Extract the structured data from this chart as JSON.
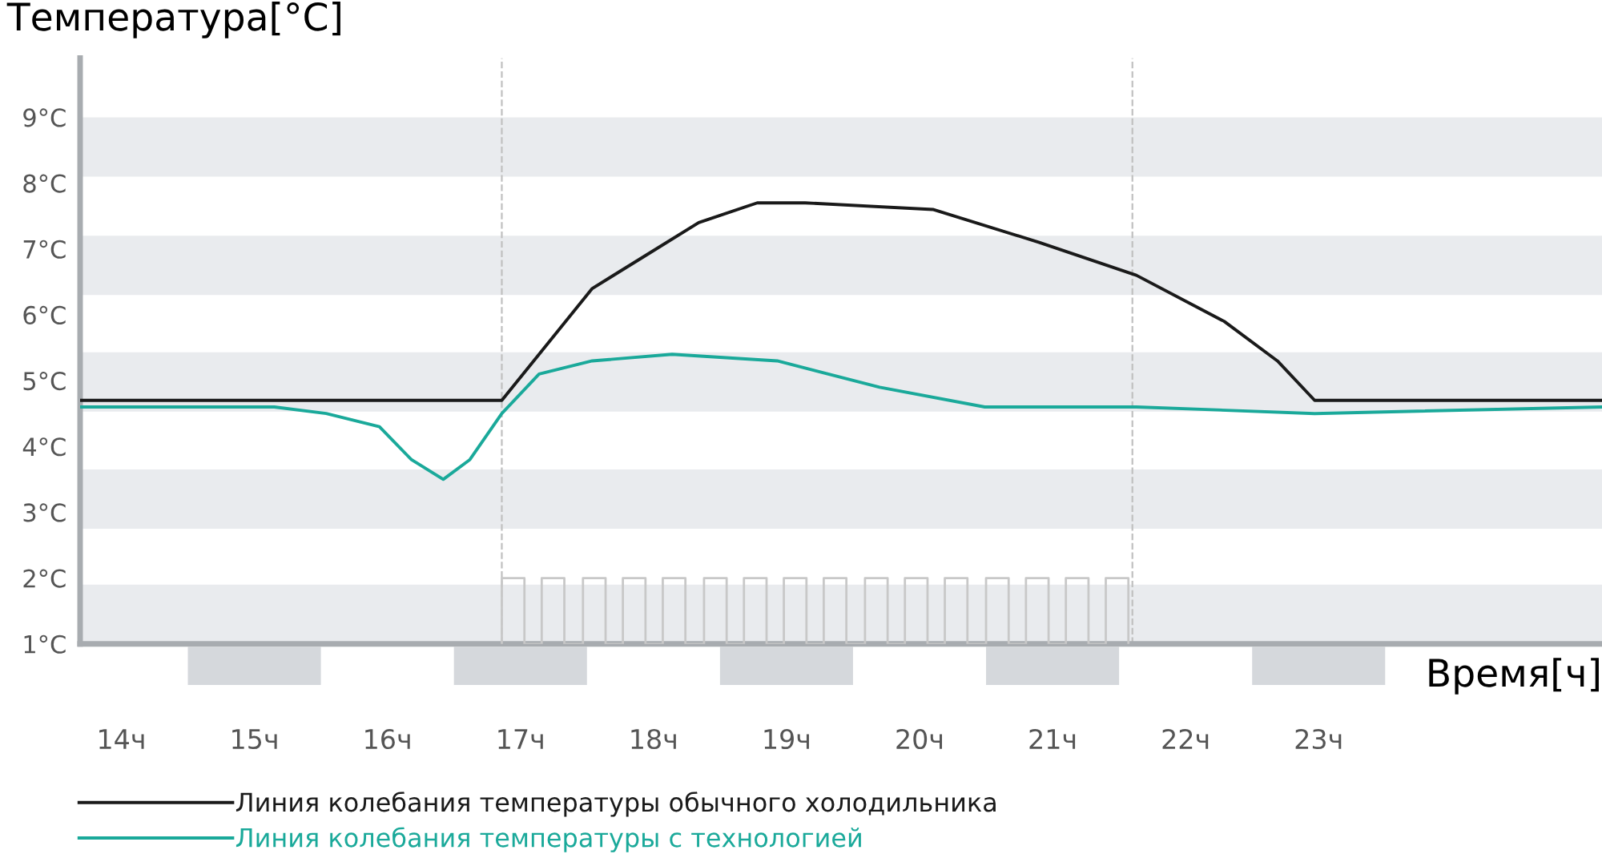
{
  "chart_data": {
    "type": "line",
    "xlabel": "Время[ч]",
    "ylabel": "Температура[°C]",
    "xlim": [
      13.69,
      25.13
    ],
    "ylim": [
      1,
      9.9
    ],
    "xticks": [
      {
        "value": 14,
        "label": "14ч"
      },
      {
        "value": 15,
        "label": "15ч"
      },
      {
        "value": 16,
        "label": "16ч"
      },
      {
        "value": 17,
        "label": "17ч"
      },
      {
        "value": 18,
        "label": "18ч"
      },
      {
        "value": 19,
        "label": "19ч"
      },
      {
        "value": 20,
        "label": "20ч"
      },
      {
        "value": 21,
        "label": "21ч"
      },
      {
        "value": 22,
        "label": "22ч"
      },
      {
        "value": 23,
        "label": "23ч"
      }
    ],
    "yticks": [
      {
        "value": 1,
        "label": "1°C"
      },
      {
        "value": 2,
        "label": "2°C"
      },
      {
        "value": 3,
        "label": "3°C"
      },
      {
        "value": 4,
        "label": "4°C"
      },
      {
        "value": 5,
        "label": "5°C"
      },
      {
        "value": 6,
        "label": "6°C"
      },
      {
        "value": 7,
        "label": "7°C"
      },
      {
        "value": 8,
        "label": "8°C"
      },
      {
        "value": 9,
        "label": "9°C"
      }
    ],
    "grid": false,
    "legend": "bottom left",
    "marker": "none",
    "line_style": "solid",
    "bands": [
      {
        "axis": "y",
        "from": 1.0,
        "to": 1.9,
        "color": "#e9ebee"
      },
      {
        "axis": "y",
        "from": 2.75,
        "to": 3.65,
        "color": "#e9ebee"
      },
      {
        "axis": "y",
        "from": 4.53,
        "to": 5.43,
        "color": "#e9ebee"
      },
      {
        "axis": "y",
        "from": 6.3,
        "to": 7.2,
        "color": "#e9ebee"
      },
      {
        "axis": "y",
        "from": 8.1,
        "to": 9.0,
        "color": "#e9ebee"
      }
    ],
    "ref_lines": [
      {
        "axis": "x",
        "value": 16.86,
        "color": "#c0c0c0",
        "line_style": "dashed"
      },
      {
        "axis": "x",
        "value": 21.6,
        "color": "#c0c0c0",
        "line_style": "dashed"
      }
    ],
    "series": [
      {
        "color": "#c8c8c8",
        "x": [
          16.86,
          16.86,
          17.03,
          17.03,
          17.16,
          17.16,
          17.33,
          17.33,
          17.47,
          17.47,
          17.64,
          17.64,
          17.77,
          17.77,
          17.94,
          17.94,
          18.07,
          18.07,
          18.24,
          18.24,
          18.38,
          18.38,
          18.55,
          18.55,
          18.68,
          18.68,
          18.85,
          18.85,
          18.98,
          18.98,
          19.15,
          19.15,
          19.28,
          19.28,
          19.45,
          19.45,
          19.59,
          19.59,
          19.76,
          19.76,
          19.89,
          19.89,
          20.06,
          20.06,
          20.19,
          20.19,
          20.36,
          20.36,
          20.5,
          20.5,
          20.67,
          20.67,
          20.8,
          20.8,
          20.97,
          20.97,
          21.1,
          21.1,
          21.27,
          21.27,
          21.4,
          21.4,
          21.57,
          21.57
        ],
        "values": [
          1,
          2,
          2,
          1,
          1,
          2,
          2,
          1,
          1,
          2,
          2,
          1,
          1,
          2,
          2,
          1,
          1,
          2,
          2,
          1,
          1,
          2,
          2,
          1,
          1,
          2,
          2,
          1,
          1,
          2,
          2,
          1,
          1,
          2,
          2,
          1,
          1,
          2,
          2,
          1,
          1,
          2,
          2,
          1,
          1,
          2,
          2,
          1,
          1,
          2,
          2,
          1,
          1,
          2,
          2,
          1,
          1,
          2,
          2,
          1,
          1,
          2,
          2,
          1
        ]
      },
      {
        "name": "Линия колебания температуры обычного холодильника",
        "color": "#1a1a1a",
        "x": [
          13.69,
          16.86,
          17.14,
          17.54,
          17.94,
          18.34,
          18.78,
          19.14,
          20.1,
          20.9,
          21.63,
          22.29,
          22.69,
          22.97,
          25.13
        ],
        "values": [
          4.7,
          4.7,
          5.4,
          6.4,
          6.9,
          7.4,
          7.7,
          7.7,
          7.6,
          7.1,
          6.6,
          5.9,
          5.3,
          4.7,
          4.7
        ]
      },
      {
        "name": "Линия колебания температуры с технологией",
        "color": "#1aa99a",
        "x": [
          13.69,
          15.15,
          15.54,
          15.94,
          16.18,
          16.42,
          16.62,
          16.86,
          17.14,
          17.54,
          18.14,
          18.93,
          19.7,
          20.49,
          21.63,
          22.97,
          25.13
        ],
        "values": [
          4.6,
          4.6,
          4.5,
          4.3,
          3.8,
          3.5,
          3.8,
          4.5,
          5.1,
          5.3,
          5.4,
          5.3,
          4.9,
          4.6,
          4.6,
          4.5,
          4.6
        ]
      }
    ]
  }
}
